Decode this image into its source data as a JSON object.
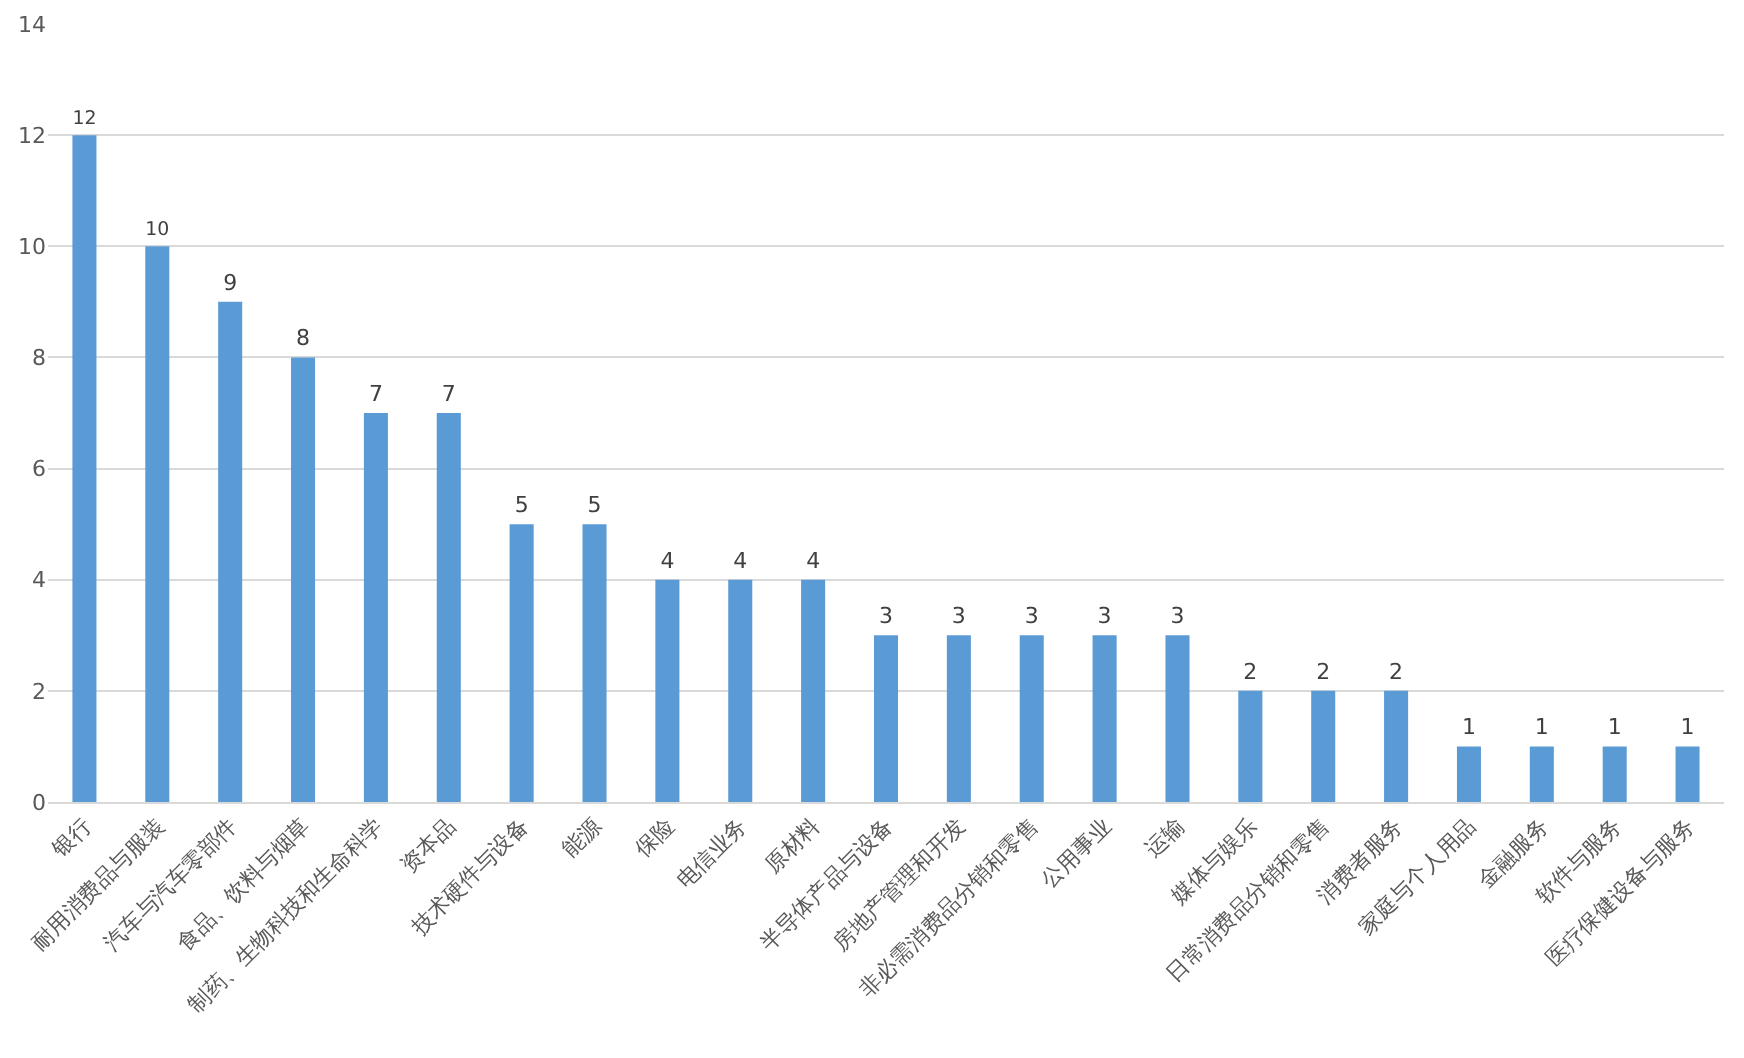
{
  "chart_data": {
    "type": "bar",
    "categories": [
      "银行",
      "耐用消费品与服装",
      "汽车与汽车零部件",
      "食品、饮料与烟草",
      "制药、生物科技和生命科学",
      "资本品",
      "技术硬件与设备",
      "能源",
      "保险",
      "电信业务",
      "原材料",
      "半导体产品与设备",
      "房地产管理和开发",
      "非必需消费品分销和零售",
      "公用事业",
      "运输",
      "媒体与娱乐",
      "日常消费品分销和零售",
      "消费者服务",
      "家庭与个人用品",
      "金融服务",
      "软件与服务",
      "医疗保健设备与服务"
    ],
    "values": [
      12,
      10,
      9,
      8,
      7,
      7,
      5,
      5,
      4,
      4,
      4,
      3,
      3,
      3,
      3,
      3,
      2,
      2,
      2,
      1,
      1,
      1,
      1
    ],
    "color": "#5b9bd5",
    "ylim": [
      0,
      14
    ],
    "yticks": [
      0,
      2,
      4,
      6,
      8,
      10,
      12,
      14
    ],
    "grid": "y",
    "data_labels": true
  }
}
